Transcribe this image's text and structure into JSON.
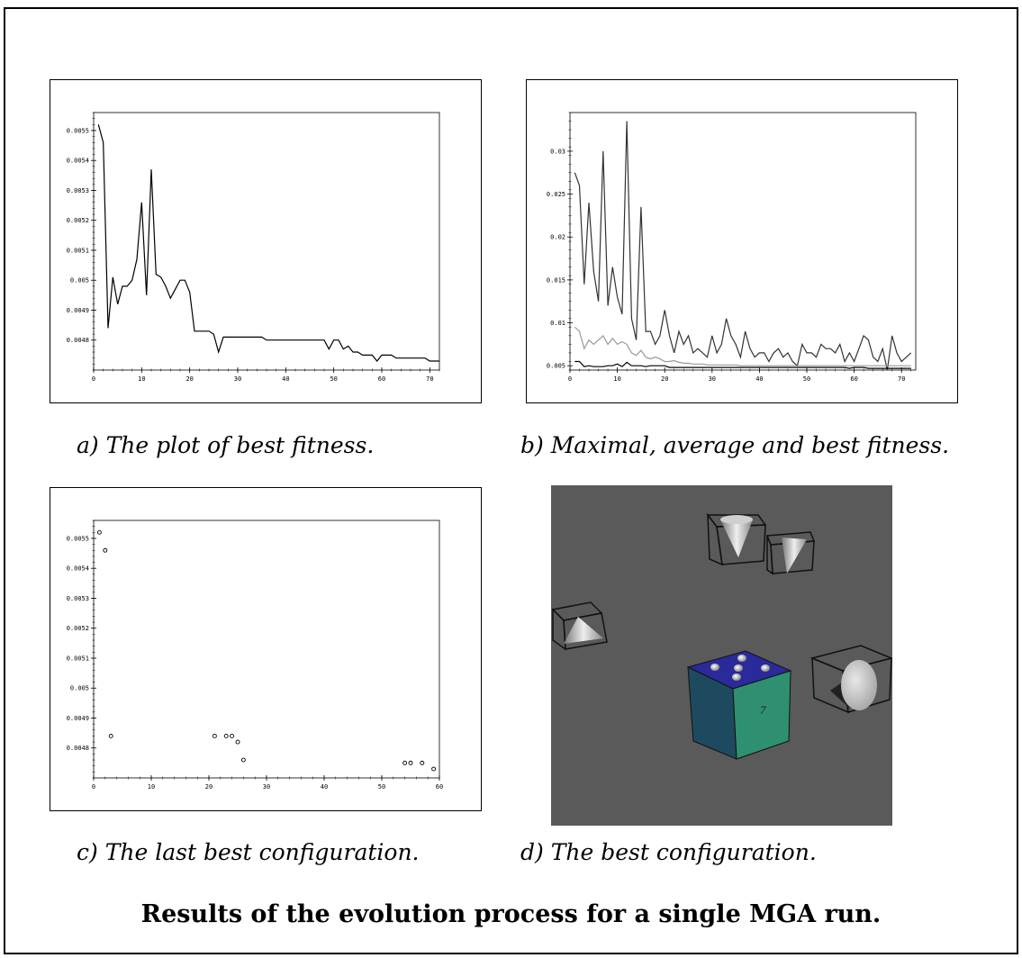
{
  "captions": {
    "a": "a) The plot of best fitness.",
    "b": "b) Maximal, average and best fitness.",
    "c": "c) The last best configuration.",
    "d": "d) The best configuration."
  },
  "footer": "Results of the evolution process for a single MGA run.",
  "scene": {
    "cube_label": "7",
    "colors": {
      "background": "#5a5a5a",
      "cube_top": "#2a2a9a",
      "cube_left": "#1e4a60",
      "cube_right": "#2e9070"
    }
  },
  "chart_data": [
    {
      "id": "a",
      "type": "line",
      "xlim": [
        0,
        72
      ],
      "ylim": [
        0.0047,
        0.00556
      ],
      "xticks": [
        0,
        10,
        20,
        30,
        40,
        50,
        60,
        70
      ],
      "yticks": [
        0.0048,
        0.0049,
        0.005,
        0.0051,
        0.0052,
        0.0053,
        0.0054,
        0.0055
      ],
      "ytick_labels": [
        "0.0048",
        "0.0049",
        "0.005",
        "0.0051",
        "0.0052",
        "0.0053",
        "0.0054",
        "0.0055"
      ],
      "series": [
        {
          "color": "#000000",
          "x": [
            1,
            2,
            3,
            4,
            5,
            6,
            7,
            8,
            9,
            10,
            11,
            12,
            13,
            14,
            15,
            16,
            17,
            18,
            19,
            20,
            21,
            22,
            23,
            24,
            25,
            26,
            27,
            28,
            29,
            30,
            31,
            32,
            33,
            34,
            35,
            36,
            37,
            38,
            39,
            40,
            41,
            42,
            43,
            44,
            45,
            46,
            47,
            48,
            49,
            50,
            51,
            52,
            53,
            54,
            55,
            56,
            57,
            58,
            59,
            60,
            61,
            62,
            63,
            64,
            65,
            66,
            67,
            68,
            69,
            70,
            71,
            72
          ],
          "y": [
            0.00552,
            0.00546,
            0.00484,
            0.00501,
            0.00492,
            0.00498,
            0.00498,
            0.005,
            0.00507,
            0.00526,
            0.00495,
            0.00537,
            0.00502,
            0.00501,
            0.00498,
            0.00494,
            0.00497,
            0.005,
            0.005,
            0.00496,
            0.00483,
            0.00483,
            0.00483,
            0.00483,
            0.00482,
            0.00476,
            0.00481,
            0.00481,
            0.00481,
            0.00481,
            0.00481,
            0.00481,
            0.00481,
            0.00481,
            0.00481,
            0.0048,
            0.0048,
            0.0048,
            0.0048,
            0.0048,
            0.0048,
            0.0048,
            0.0048,
            0.0048,
            0.0048,
            0.0048,
            0.0048,
            0.0048,
            0.00477,
            0.0048,
            0.0048,
            0.00477,
            0.00478,
            0.00476,
            0.00476,
            0.00475,
            0.00475,
            0.00475,
            0.00473,
            0.00475,
            0.00475,
            0.00475,
            0.00474,
            0.00474,
            0.00474,
            0.00474,
            0.00474,
            0.00474,
            0.00474,
            0.00473,
            0.00473,
            0.00473
          ]
        }
      ]
    },
    {
      "id": "b",
      "type": "line",
      "xlim": [
        0,
        73
      ],
      "ylim": [
        0.0045,
        0.0345
      ],
      "xticks": [
        0,
        10,
        20,
        30,
        40,
        50,
        60,
        70
      ],
      "yticks": [
        0.005,
        0.01,
        0.015,
        0.02,
        0.025,
        0.03
      ],
      "ytick_labels": [
        "0.005",
        "0.01",
        "0.015",
        "0.02",
        "0.025",
        "0.03"
      ],
      "series": [
        {
          "color": "#333333",
          "x": [
            1,
            2,
            3,
            4,
            5,
            6,
            7,
            8,
            9,
            10,
            11,
            12,
            13,
            14,
            15,
            16,
            17,
            18,
            19,
            20,
            21,
            22,
            23,
            24,
            25,
            26,
            27,
            28,
            29,
            30,
            31,
            32,
            33,
            34,
            35,
            36,
            37,
            38,
            39,
            40,
            41,
            42,
            43,
            44,
            45,
            46,
            47,
            48,
            49,
            50,
            51,
            52,
            53,
            54,
            55,
            56,
            57,
            58,
            59,
            60,
            61,
            62,
            63,
            64,
            65,
            66,
            67,
            68,
            69,
            70,
            71,
            72
          ],
          "y": [
            0.0275,
            0.026,
            0.0145,
            0.024,
            0.016,
            0.0125,
            0.03,
            0.012,
            0.0165,
            0.013,
            0.011,
            0.0335,
            0.0105,
            0.008,
            0.0235,
            0.009,
            0.009,
            0.0075,
            0.0085,
            0.0115,
            0.0085,
            0.0065,
            0.009,
            0.0075,
            0.0085,
            0.0065,
            0.007,
            0.0065,
            0.006,
            0.0085,
            0.0065,
            0.0075,
            0.0105,
            0.0085,
            0.0075,
            0.006,
            0.009,
            0.007,
            0.006,
            0.0065,
            0.0065,
            0.0055,
            0.0065,
            0.007,
            0.006,
            0.0065,
            0.0055,
            0.005,
            0.0075,
            0.0065,
            0.0065,
            0.006,
            0.0075,
            0.007,
            0.007,
            0.0065,
            0.0075,
            0.0055,
            0.0065,
            0.0055,
            0.007,
            0.0085,
            0.008,
            0.006,
            0.0055,
            0.007,
            0.0045,
            0.0085,
            0.0065,
            0.0055,
            0.006,
            0.0065
          ]
        },
        {
          "color": "#999999",
          "x": [
            1,
            2,
            3,
            4,
            5,
            6,
            7,
            8,
            9,
            10,
            11,
            12,
            13,
            14,
            15,
            16,
            17,
            18,
            19,
            20,
            21,
            22,
            23,
            24,
            25,
            26,
            27,
            28,
            29,
            30,
            31,
            32,
            33,
            34,
            35,
            36,
            37,
            38,
            39,
            40,
            41,
            42,
            43,
            44,
            45,
            46,
            47,
            48,
            49,
            50,
            51,
            52,
            53,
            54,
            55,
            56,
            57,
            58,
            59,
            60,
            61,
            62,
            63,
            64,
            65,
            66,
            67,
            68,
            69,
            70,
            71,
            72
          ],
          "y": [
            0.0095,
            0.009,
            0.007,
            0.008,
            0.0075,
            0.008,
            0.0085,
            0.0075,
            0.0082,
            0.0075,
            0.0078,
            0.0075,
            0.0065,
            0.0062,
            0.0068,
            0.006,
            0.0058,
            0.006,
            0.0058,
            0.0055,
            0.0055,
            0.0056,
            0.0054,
            0.0053,
            0.0053,
            0.0052,
            0.0052,
            0.0052,
            0.0051,
            0.0051,
            0.0051,
            0.0051,
            0.0051,
            0.0051,
            0.0051,
            0.005,
            0.005,
            0.005,
            0.005,
            0.005,
            0.005,
            0.005,
            0.005,
            0.005,
            0.005,
            0.005,
            0.005,
            0.005,
            0.005,
            0.005,
            0.005,
            0.005,
            0.005,
            0.005,
            0.005,
            0.005,
            0.005,
            0.005,
            0.005,
            0.005,
            0.005,
            0.005,
            0.005,
            0.005,
            0.005,
            0.005,
            0.005,
            0.005,
            0.005,
            0.005,
            0.005,
            0.005
          ]
        },
        {
          "color": "#000000",
          "x": [
            1,
            2,
            3,
            4,
            5,
            6,
            7,
            8,
            9,
            10,
            11,
            12,
            13,
            14,
            15,
            16,
            17,
            18,
            19,
            20,
            21,
            22,
            23,
            24,
            25,
            26,
            27,
            28,
            29,
            30,
            31,
            32,
            33,
            34,
            35,
            36,
            37,
            38,
            39,
            40,
            41,
            42,
            43,
            44,
            45,
            46,
            47,
            48,
            49,
            50,
            51,
            52,
            53,
            54,
            55,
            56,
            57,
            58,
            59,
            60,
            61,
            62,
            63,
            64,
            65,
            66,
            67,
            68,
            69,
            70,
            71,
            72
          ],
          "y": [
            0.0055,
            0.0055,
            0.0049,
            0.005,
            0.0049,
            0.0049,
            0.0049,
            0.005,
            0.005,
            0.0052,
            0.0049,
            0.0054,
            0.005,
            0.005,
            0.005,
            0.0049,
            0.005,
            0.005,
            0.005,
            0.005,
            0.0048,
            0.0048,
            0.0048,
            0.0048,
            0.0048,
            0.0048,
            0.0048,
            0.0048,
            0.0048,
            0.0048,
            0.0048,
            0.0048,
            0.0048,
            0.0048,
            0.0048,
            0.0048,
            0.0048,
            0.0048,
            0.0048,
            0.0048,
            0.0048,
            0.0048,
            0.0048,
            0.0048,
            0.0048,
            0.0048,
            0.0048,
            0.0048,
            0.0048,
            0.0048,
            0.0048,
            0.0048,
            0.0048,
            0.0048,
            0.0048,
            0.0048,
            0.0048,
            0.0048,
            0.0047,
            0.0048,
            0.0048,
            0.0048,
            0.0047,
            0.0047,
            0.0047,
            0.0047,
            0.0047,
            0.0047,
            0.0047,
            0.0047,
            0.0047,
            0.0047
          ]
        }
      ]
    },
    {
      "id": "c",
      "type": "scatter",
      "xlim": [
        0,
        60
      ],
      "ylim": [
        0.0047,
        0.00556
      ],
      "xticks": [
        0,
        10,
        20,
        30,
        40,
        50,
        60
      ],
      "yticks": [
        0.0048,
        0.0049,
        0.005,
        0.0051,
        0.0052,
        0.0053,
        0.0054,
        0.0055
      ],
      "ytick_labels": [
        "0.0048",
        "0.0049",
        "0.005",
        "0.0051",
        "0.0052",
        "0.0053",
        "0.0054",
        "0.0055"
      ],
      "series": [
        {
          "color": "#000000",
          "x": [
            1,
            2,
            3,
            21,
            23,
            24,
            25,
            26,
            54,
            55,
            57,
            59
          ],
          "y": [
            0.00552,
            0.00546,
            0.00484,
            0.00484,
            0.00484,
            0.00484,
            0.00482,
            0.00476,
            0.00475,
            0.00475,
            0.00475,
            0.00473
          ]
        }
      ]
    }
  ]
}
